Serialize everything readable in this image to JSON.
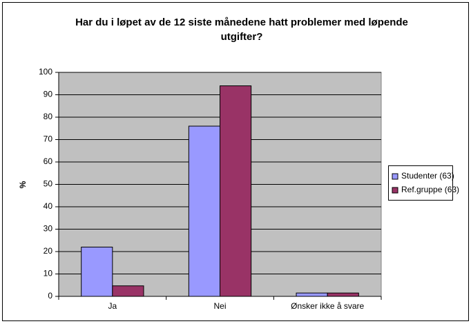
{
  "chart_data": {
    "type": "bar",
    "title": "Har du i løpet av de 12 siste månedene hatt problemer med løpende utgifter?",
    "y_label": "%",
    "categories": [
      "Ja",
      "Nei",
      "Ønsker ikke å svare"
    ],
    "series": [
      {
        "name": "Studenter (63)",
        "color": "#9999ff",
        "values": [
          22,
          76,
          1.5
        ]
      },
      {
        "name": "Ref.gruppe (63)",
        "color": "#993366",
        "values": [
          4.7,
          94,
          1.5
        ]
      }
    ],
    "ylim": [
      0,
      100
    ],
    "yticks": [
      0,
      10,
      20,
      30,
      40,
      50,
      60,
      70,
      80,
      90,
      100
    ],
    "grid": true,
    "legend": "right",
    "plot_background": "#c0c0c0"
  }
}
